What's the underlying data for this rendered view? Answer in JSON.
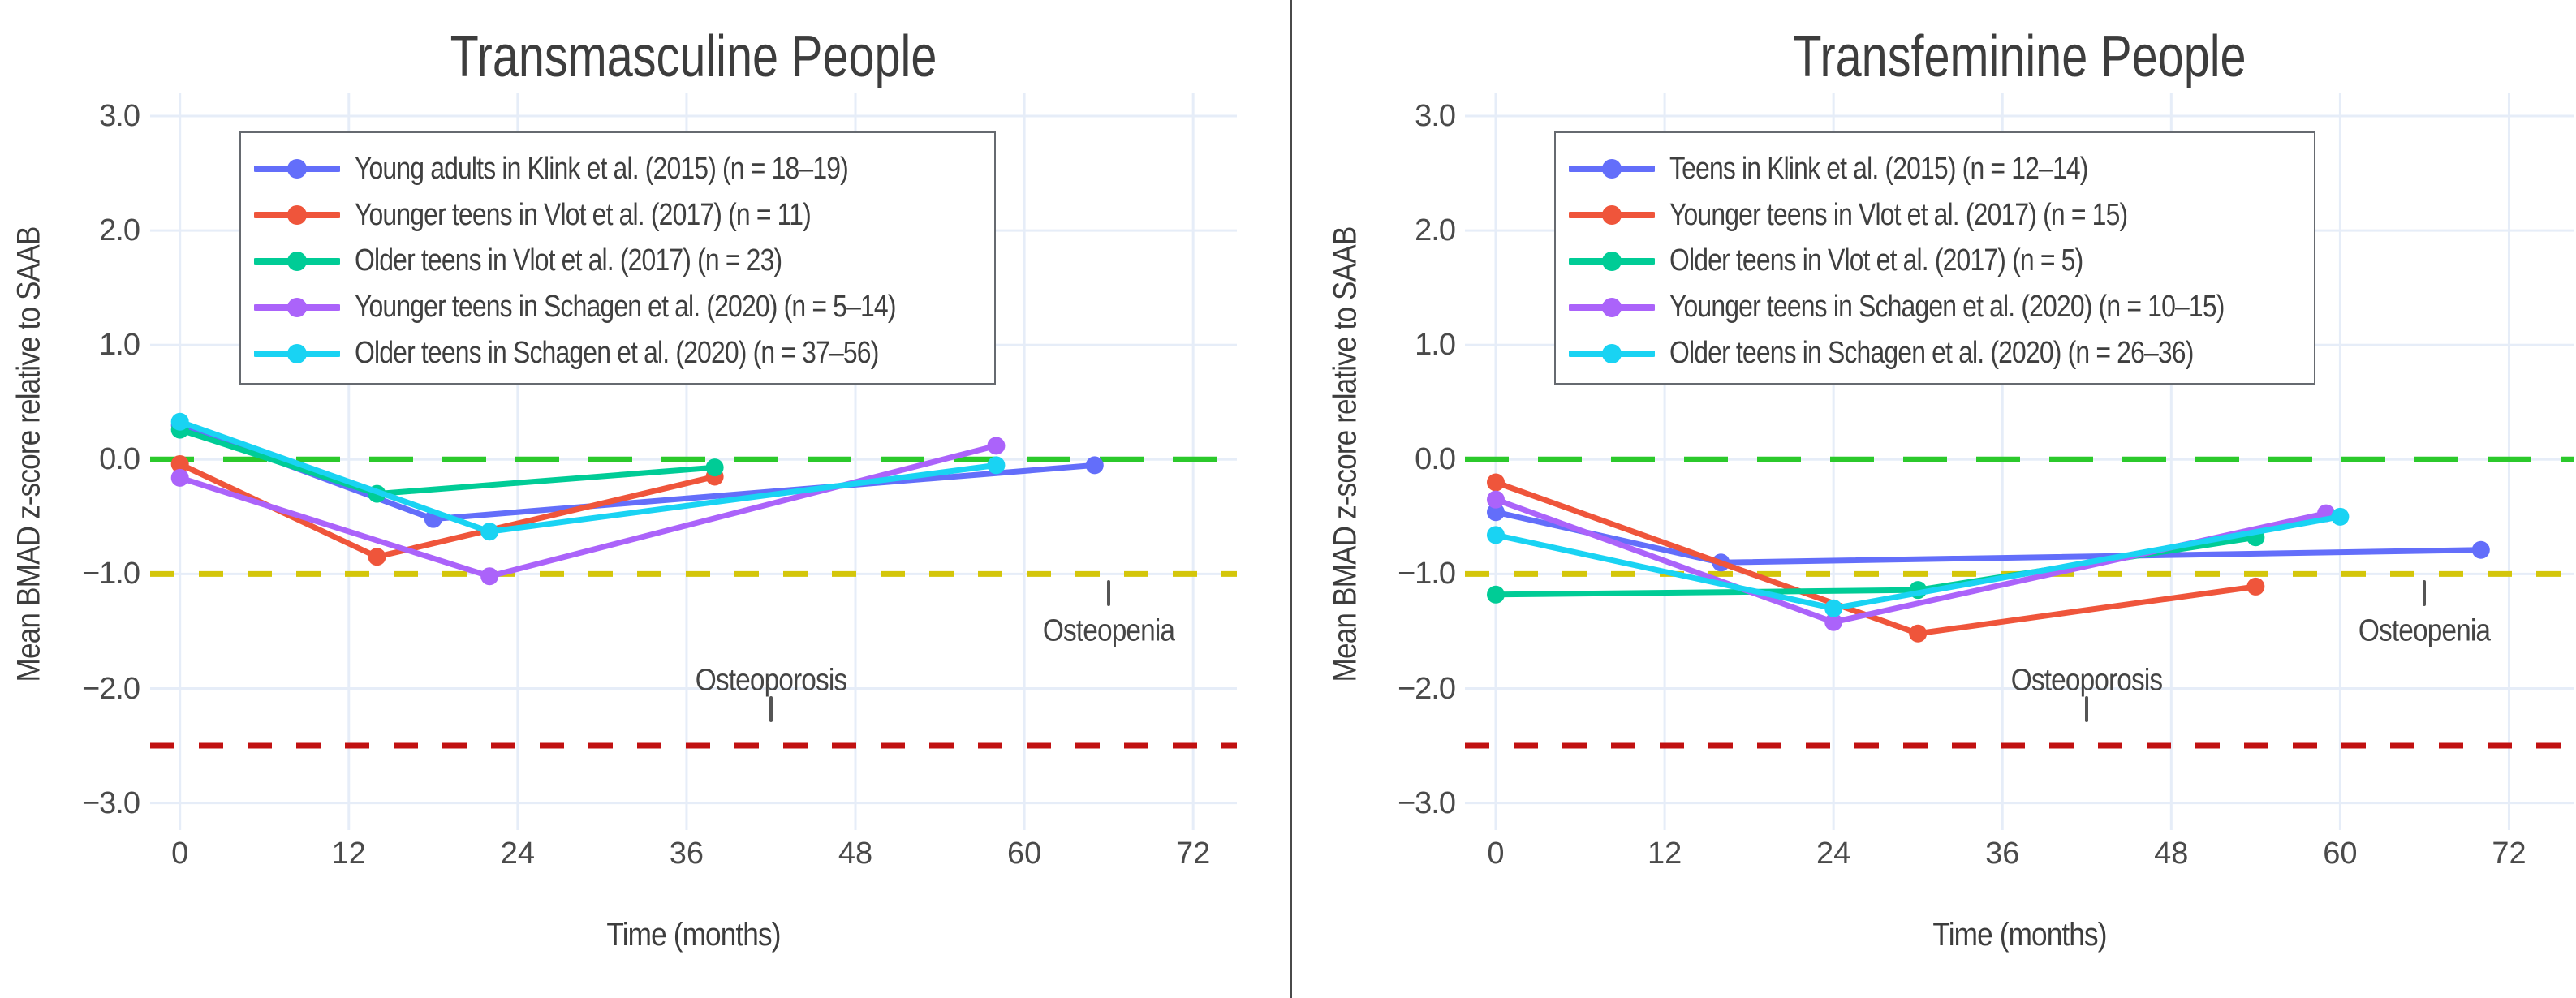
{
  "figure": {
    "background": "#ffffff",
    "divider_color": "#4a4a4a",
    "grid_color": "#e6edf8",
    "text_color": "#3f3f3f"
  },
  "chart_data": [
    {
      "type": "line",
      "title": "Transmasculine People",
      "xlabel": "Time (months)",
      "ylabel": "Mean BMAD z-score relative to SAAB",
      "xlim": [
        -2,
        75
      ],
      "ylim": [
        -3.4,
        3.4
      ],
      "xticks": [
        0,
        12,
        24,
        36,
        48,
        60,
        72
      ],
      "yticks": [
        3,
        2,
        1,
        0,
        -1,
        -2,
        -3
      ],
      "ytick_labels": [
        "3.0",
        "2.0",
        "1.0",
        "0.0",
        "−1.0",
        "−2.0",
        "−3.0"
      ],
      "grid": true,
      "legend_position": "top-left",
      "series": [
        {
          "name": "Young adults in Klink et al. (2015) (n = 18–19)",
          "color": "#636EFA",
          "x": [
            0,
            18,
            65
          ],
          "y": [
            0.3,
            -0.52,
            -0.05
          ]
        },
        {
          "name": "Younger teens in Vlot et al. (2017) (n = 11)",
          "color": "#EF553B",
          "x": [
            0,
            14,
            38
          ],
          "y": [
            -0.04,
            -0.85,
            -0.15
          ]
        },
        {
          "name": "Older teens in Vlot et al. (2017) (n = 23)",
          "color": "#00CC96",
          "x": [
            0,
            14,
            38
          ],
          "y": [
            0.26,
            -0.3,
            -0.07
          ]
        },
        {
          "name": "Younger teens in Schagen et al. (2020) (n = 5–14)",
          "color": "#AB63FA",
          "x": [
            0,
            22,
            58
          ],
          "y": [
            -0.16,
            -1.02,
            0.12
          ]
        },
        {
          "name": "Older teens in Schagen et al. (2020) (n = 37–56)",
          "color": "#19D3F3",
          "x": [
            0,
            22,
            58
          ],
          "y": [
            0.33,
            -0.63,
            -0.05
          ]
        }
      ],
      "reference_lines": [
        {
          "y": 0.0,
          "color": "#2bc92b",
          "dash": "long"
        },
        {
          "y": -1.0,
          "color": "#d4c60a",
          "dash": "short"
        },
        {
          "y": -2.5,
          "color": "#c11111",
          "dash": "short"
        }
      ],
      "annotations": [
        {
          "text": "Osteoporosis",
          "x": 42,
          "text_y": -1.93,
          "tick_y": -2.18
        },
        {
          "text": "Osteopenia",
          "x": 66,
          "text_y": -1.5,
          "tick_y": -1.17
        }
      ]
    },
    {
      "type": "line",
      "title": "Transfeminine People",
      "xlabel": "Time (months)",
      "ylabel": "Mean BMAD z-score relative to SAAB",
      "xlim": [
        -2,
        75
      ],
      "ylim": [
        -3.4,
        3.4
      ],
      "xticks": [
        0,
        12,
        24,
        36,
        48,
        60,
        72
      ],
      "yticks": [
        3,
        2,
        1,
        0,
        -1,
        -2,
        -3
      ],
      "ytick_labels": [
        "3.0",
        "2.0",
        "1.0",
        "0.0",
        "−1.0",
        "−2.0",
        "−3.0"
      ],
      "grid": true,
      "legend_position": "top-left",
      "series": [
        {
          "name": "Teens in Klink et al. (2015) (n = 12–14)",
          "color": "#636EFA",
          "x": [
            0,
            16,
            70
          ],
          "y": [
            -0.46,
            -0.9,
            -0.79
          ]
        },
        {
          "name": "Younger teens in Vlot et al. (2017) (n = 15)",
          "color": "#EF553B",
          "x": [
            0,
            30,
            54
          ],
          "y": [
            -0.2,
            -1.52,
            -1.11
          ]
        },
        {
          "name": "Older teens in Vlot et al. (2017) (n = 5)",
          "color": "#00CC96",
          "x": [
            0,
            30,
            54
          ],
          "y": [
            -1.18,
            -1.14,
            -0.68
          ]
        },
        {
          "name": "Younger teens in Schagen et al. (2020) (n = 10–15)",
          "color": "#AB63FA",
          "x": [
            0,
            24,
            59
          ],
          "y": [
            -0.35,
            -1.42,
            -0.47
          ]
        },
        {
          "name": "Older teens in Schagen et al. (2020) (n = 26–36)",
          "color": "#19D3F3",
          "x": [
            0,
            24,
            60
          ],
          "y": [
            -0.66,
            -1.3,
            -0.5
          ]
        }
      ],
      "reference_lines": [
        {
          "y": 0.0,
          "color": "#2bc92b",
          "dash": "long"
        },
        {
          "y": -1.0,
          "color": "#d4c60a",
          "dash": "short"
        },
        {
          "y": -2.5,
          "color": "#c11111",
          "dash": "short"
        }
      ],
      "annotations": [
        {
          "text": "Osteoporosis",
          "x": 42,
          "text_y": -1.93,
          "tick_y": -2.18
        },
        {
          "text": "Osteopenia",
          "x": 66,
          "text_y": -1.5,
          "tick_y": -1.17
        }
      ]
    }
  ]
}
